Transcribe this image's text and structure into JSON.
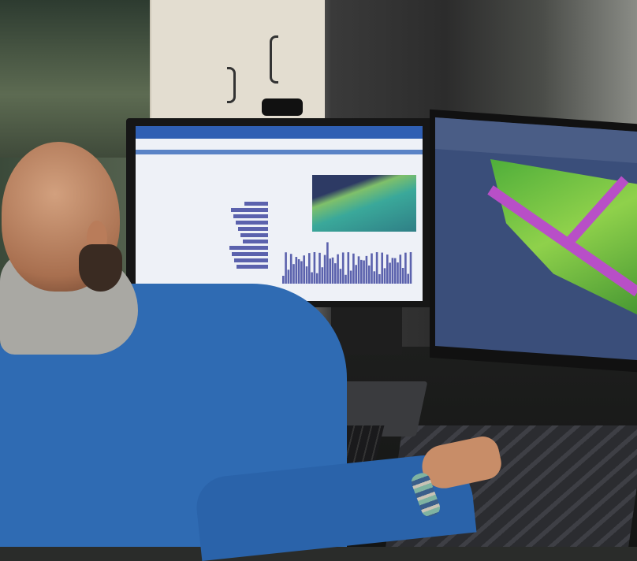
{
  "scene": {
    "subject": "person-at-desk",
    "objects": [
      "main-monitor",
      "right-monitor",
      "webcam",
      "laptop",
      "keyboard",
      "mousepad",
      "bracelet"
    ]
  },
  "colors": {
    "jacket": "#2f6bb3",
    "hood": "#a9a8a3",
    "screen_header": "#2f5fb3",
    "chart_bars": "#5b62ad",
    "terrain": "#8fd14b",
    "road": "#b84fc7",
    "cad_background": "#3a4e7a"
  }
}
